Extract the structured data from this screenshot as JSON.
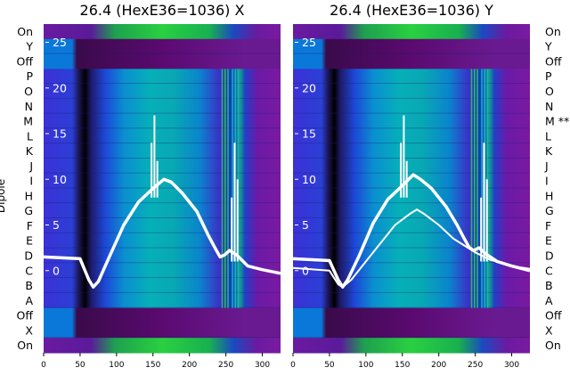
{
  "ylabel": "Dipole",
  "row_labels_left": [
    "On",
    "Y",
    "Off",
    "P",
    "O",
    "N",
    "M",
    "L",
    "K",
    "J",
    "I",
    "H",
    "G",
    "F",
    "E",
    "D",
    "C",
    "B",
    "A",
    "Off",
    "X",
    "On"
  ],
  "row_labels_right": [
    "On",
    "Y",
    "Off",
    "P",
    "O",
    "N",
    "M **",
    "L",
    "K",
    "J",
    "I",
    "H",
    "G",
    "F",
    "E",
    "D",
    "C",
    "B",
    "A",
    "Off",
    "X",
    "On"
  ],
  "chart_data": [
    {
      "type": "heatmap",
      "title": "26.4 (HexE36=1036) X",
      "x_ticks": [
        0,
        50,
        100,
        150,
        200,
        250,
        300
      ],
      "xlim": [
        0,
        325
      ],
      "overlay_y_ticks": [
        25,
        20,
        15,
        10,
        5,
        0
      ],
      "overlay_ylim": [
        -9,
        27
      ],
      "series": [
        {
          "x": [
            0,
            50,
            62,
            68,
            75,
            90,
            110,
            130,
            150,
            165,
            175,
            190,
            210,
            225,
            235,
            242,
            248,
            255,
            265,
            280,
            300,
            325
          ],
          "y": [
            1.5,
            1.3,
            -1.0,
            -1.8,
            -1.2,
            1.5,
            5,
            7.5,
            9,
            10,
            9.7,
            8.5,
            6.5,
            4,
            2.5,
            1.5,
            1.7,
            2.2,
            1.7,
            0.5,
            0.1,
            -0.3
          ]
        }
      ]
    },
    {
      "type": "heatmap",
      "title": "26.4 (HexE36=1036) Y",
      "x_ticks": [
        0,
        50,
        100,
        150,
        200,
        250,
        300
      ],
      "xlim": [
        0,
        325
      ],
      "overlay_y_ticks": [
        25,
        20,
        15,
        10,
        5,
        0
      ],
      "overlay_ylim": [
        -9,
        27
      ],
      "series": [
        {
          "x": [
            0,
            50,
            62,
            68,
            75,
            90,
            110,
            130,
            150,
            165,
            175,
            190,
            210,
            225,
            235,
            242,
            248,
            255,
            265,
            280,
            300,
            325
          ],
          "y": [
            1.3,
            1.1,
            -1.0,
            -1.8,
            -1.0,
            1.5,
            5.2,
            7.8,
            9.3,
            10.5,
            10,
            9,
            7,
            5,
            3.5,
            2.5,
            2.2,
            2.5,
            1.8,
            1,
            0.5,
            0
          ]
        },
        {
          "x": [
            0,
            50,
            62,
            68,
            80,
            100,
            120,
            140,
            160,
            170,
            180,
            200,
            220,
            240,
            250,
            270,
            300,
            325
          ],
          "y": [
            0.3,
            0,
            -1.5,
            -1.8,
            -1,
            1,
            3,
            5,
            6.2,
            6.7,
            6.2,
            5,
            3.5,
            2.5,
            2,
            1.2,
            0.5,
            0.2
          ]
        }
      ]
    }
  ]
}
